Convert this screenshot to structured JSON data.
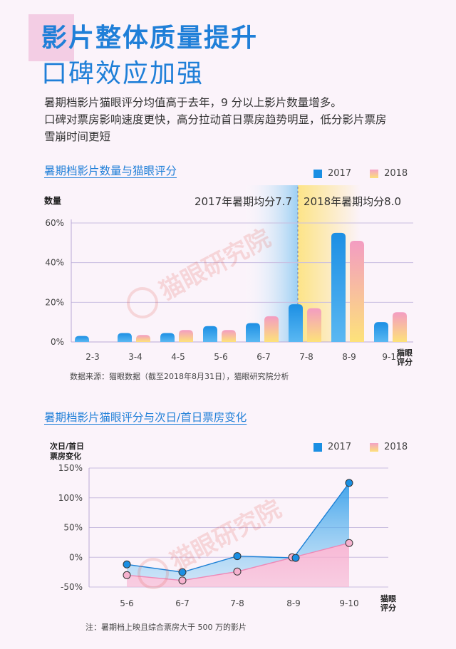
{
  "header": {
    "title_line1": "影片整体质量提升",
    "title_line2": "口碑效应加强"
  },
  "intro": {
    "line1": "暑期档影片猫眼评分均值高于去年，9 分以上影片数量增多。",
    "line2": "口碑对票房影响速度更快，高分拉动首日票房趋势明显，低分影片票房",
    "line3": "雪崩时间更短"
  },
  "watermark": "猫眼研究院",
  "chart1": {
    "title": "暑期档影片数量与猫眼评分",
    "source": "数据来源：猫眼数据（截至2018年8月31日），猫眼研究院分析"
  },
  "chart2": {
    "title": "暑期档影片猫眼评分与次日/首日票房变化",
    "note": "注：暑期档上映且综合票房大于 500 万的影片"
  },
  "colors": {
    "blue": "#1a8fe3",
    "pink": "#f4a3c6",
    "yellow": "#fce07a",
    "title": "#1f7fd8"
  },
  "chart_data": [
    {
      "type": "bar",
      "title": "暑期档影片数量与猫眼评分",
      "ylabel": "数量",
      "xlabel": "猫眼评分",
      "categories": [
        "2-3",
        "3-4",
        "4-5",
        "5-6",
        "6-7",
        "7-8",
        "8-9",
        "9-10"
      ],
      "series": [
        {
          "name": "2017",
          "values": [
            3,
            4.5,
            4.5,
            8,
            9.5,
            19,
            55,
            10
          ]
        },
        {
          "name": "2018",
          "values": [
            0,
            3.5,
            6,
            6,
            13,
            17,
            51,
            15
          ]
        }
      ],
      "ylim": [
        0,
        60
      ],
      "yticks": [
        "0%",
        "20%",
        "40%",
        "60%"
      ],
      "annotations": [
        "2017年暑期均分7.7",
        "2018年暑期均分8.0"
      ],
      "legend": "top-right",
      "grid": true
    },
    {
      "type": "line",
      "title": "暑期档影片猫眼评分与次日/首日票房变化",
      "ylabel": "次日/首日票房变化",
      "xlabel": "猫眼评分",
      "categories": [
        "5-6",
        "6-7",
        "7-8",
        "8-9",
        "9-10"
      ],
      "series": [
        {
          "name": "2017",
          "values": [
            -12,
            -25,
            2,
            -1,
            125
          ]
        },
        {
          "name": "2018",
          "values": [
            -30,
            -39,
            -24,
            0,
            24
          ]
        }
      ],
      "ylim": [
        -50,
        150
      ],
      "yticks": [
        "-50%",
        "0%",
        "50%",
        "100%",
        "150%"
      ],
      "legend": "top-right",
      "grid": true
    }
  ]
}
